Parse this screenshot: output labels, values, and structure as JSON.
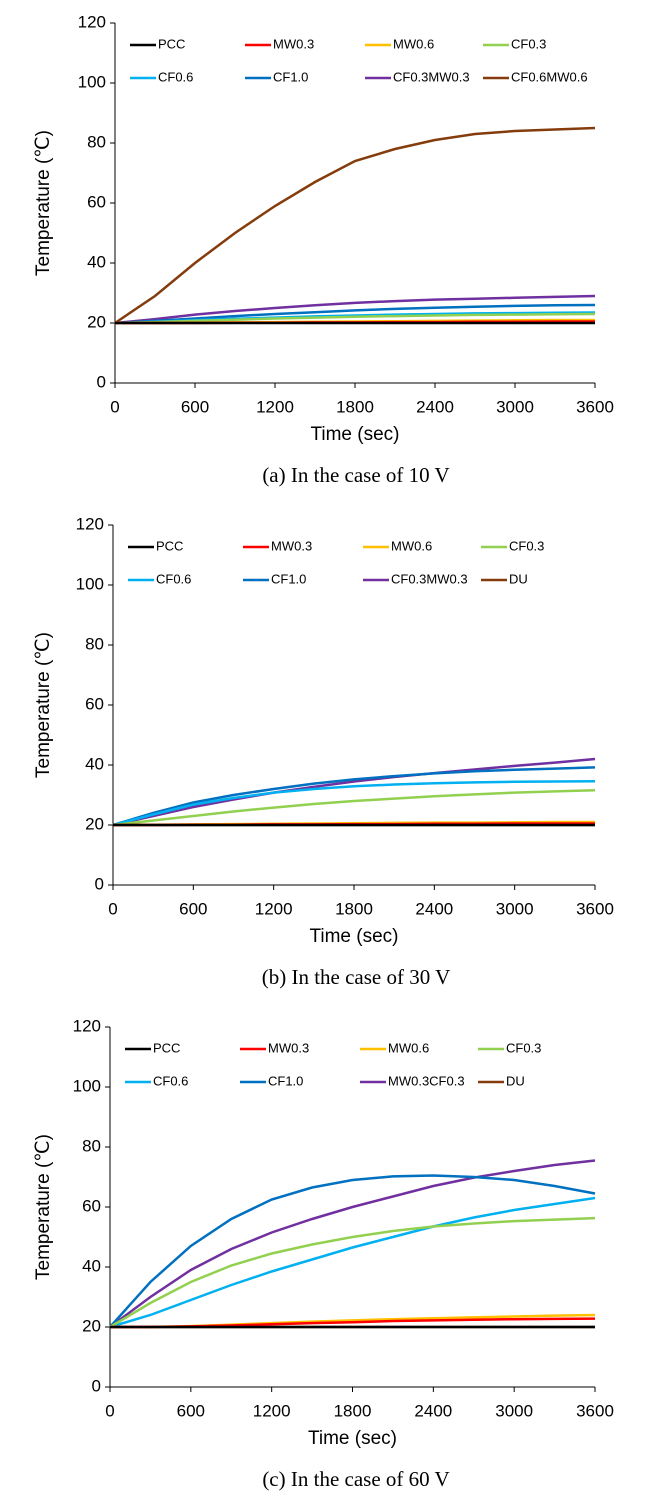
{
  "chart_data": [
    {
      "type": "line",
      "caption": "(a) In the case of 10 V",
      "xlabel": "Time (sec)",
      "ylabel": "Temperature (℃)",
      "x": [
        0,
        300,
        600,
        900,
        1200,
        1500,
        1800,
        2100,
        2400,
        2700,
        3000,
        3300,
        3600
      ],
      "xlim": [
        0,
        3600
      ],
      "xticks": [
        0,
        600,
        1200,
        1800,
        2400,
        3000,
        3600
      ],
      "ylim": [
        0,
        120
      ],
      "yticks": [
        0,
        20,
        40,
        60,
        80,
        100,
        120
      ],
      "series": [
        {
          "name": "PCC",
          "color": "#000000",
          "values": [
            20,
            20,
            20,
            20,
            20,
            20,
            20,
            20,
            20,
            20,
            20,
            20,
            20
          ]
        },
        {
          "name": "MW0.3",
          "color": "#ff0000",
          "values": [
            20,
            20,
            20,
            20.1,
            20.1,
            20.2,
            20.2,
            20.3,
            20.3,
            20.4,
            20.4,
            20.5,
            20.5
          ]
        },
        {
          "name": "MW0.6",
          "color": "#ffc000",
          "values": [
            20,
            20,
            20.1,
            20.2,
            20.3,
            20.4,
            20.5,
            20.6,
            20.7,
            20.8,
            20.9,
            21,
            21
          ]
        },
        {
          "name": "CF0.3",
          "color": "#92d050",
          "values": [
            20,
            20.3,
            20.7,
            21.1,
            21.5,
            21.8,
            22.1,
            22.3,
            22.5,
            22.7,
            22.8,
            22.9,
            23
          ]
        },
        {
          "name": "CF0.6",
          "color": "#00b0f0",
          "values": [
            20,
            20.4,
            20.9,
            21.4,
            21.8,
            22.2,
            22.5,
            22.8,
            23,
            23.2,
            23.3,
            23.4,
            23.5
          ]
        },
        {
          "name": "CF1.0",
          "color": "#0070c0",
          "values": [
            20,
            20.7,
            21.5,
            22.3,
            23,
            23.6,
            24.2,
            24.7,
            25.1,
            25.4,
            25.7,
            25.9,
            26
          ]
        },
        {
          "name": "CF0.3MW0.3",
          "color": "#7030a0",
          "values": [
            20,
            21.3,
            22.8,
            24,
            25,
            25.9,
            26.7,
            27.3,
            27.8,
            28.1,
            28.4,
            28.7,
            29
          ]
        },
        {
          "name": "CF0.6MW0.6",
          "color": "#843c0c",
          "values": [
            20,
            29,
            40,
            50,
            59,
            67,
            74,
            78,
            81,
            83,
            84,
            84.5,
            85
          ]
        }
      ]
    },
    {
      "type": "line",
      "caption": "(b) In the case of 30 V",
      "xlabel": "Time (sec)",
      "ylabel": "Temperature (℃)",
      "x": [
        0,
        300,
        600,
        900,
        1200,
        1500,
        1800,
        2100,
        2400,
        2700,
        3000,
        3300,
        3600
      ],
      "xlim": [
        0,
        3600
      ],
      "xticks": [
        0,
        600,
        1200,
        1800,
        2400,
        3000,
        3600
      ],
      "ylim": [
        0,
        120
      ],
      "yticks": [
        0,
        20,
        40,
        60,
        80,
        100,
        120
      ],
      "series": [
        {
          "name": "PCC",
          "color": "#000000",
          "values": [
            20,
            20,
            20,
            20,
            20,
            20,
            20,
            20,
            20,
            20,
            20,
            20,
            20
          ]
        },
        {
          "name": "MW0.3",
          "color": "#ff0000",
          "values": [
            20,
            20,
            20.1,
            20.1,
            20.2,
            20.2,
            20.3,
            20.3,
            20.4,
            20.4,
            20.5,
            20.5,
            20.5
          ]
        },
        {
          "name": "MW0.6",
          "color": "#ffc000",
          "values": [
            20,
            20.1,
            20.2,
            20.3,
            20.4,
            20.5,
            20.6,
            20.7,
            20.8,
            20.8,
            20.9,
            21,
            21
          ]
        },
        {
          "name": "CF0.3",
          "color": "#92d050",
          "values": [
            20,
            21.5,
            23,
            24.5,
            25.8,
            27,
            28,
            28.8,
            29.6,
            30.2,
            30.8,
            31.2,
            31.6
          ]
        },
        {
          "name": "CF0.6",
          "color": "#00b0f0",
          "values": [
            20,
            23.5,
            26.8,
            29,
            30.8,
            32,
            32.9,
            33.5,
            33.9,
            34.2,
            34.4,
            34.5,
            34.6
          ]
        },
        {
          "name": "CF1.0",
          "color": "#0070c0",
          "values": [
            20,
            24,
            27.5,
            30,
            32,
            33.8,
            35.2,
            36.3,
            37.2,
            37.9,
            38.4,
            38.8,
            39.2
          ]
        },
        {
          "name": "CF0.3MW0.3",
          "color": "#7030a0",
          "values": [
            20,
            23,
            26,
            28.5,
            30.8,
            32.7,
            34.5,
            36,
            37.3,
            38.5,
            39.7,
            40.8,
            42
          ]
        },
        {
          "name": "DU",
          "color": "#843c0c",
          "values": [
            20,
            20,
            20,
            20,
            20,
            20,
            20,
            20,
            20,
            20,
            20,
            20,
            20
          ]
        }
      ]
    },
    {
      "type": "line",
      "caption": "(c) In the case of 60 V",
      "xlabel": "Time (sec)",
      "ylabel": "Temperature (℃)",
      "x": [
        0,
        300,
        600,
        900,
        1200,
        1500,
        1800,
        2100,
        2400,
        2700,
        3000,
        3300,
        3600
      ],
      "xlim": [
        0,
        3600
      ],
      "xticks": [
        0,
        600,
        1200,
        1800,
        2400,
        3000,
        3600
      ],
      "ylim": [
        0,
        120
      ],
      "yticks": [
        0,
        20,
        40,
        60,
        80,
        100,
        120
      ],
      "series": [
        {
          "name": "PCC",
          "color": "#000000",
          "values": [
            20,
            20,
            20,
            20,
            20,
            20,
            20,
            20,
            20,
            20,
            20,
            20,
            20
          ]
        },
        {
          "name": "MW0.3",
          "color": "#ff0000",
          "values": [
            20,
            20,
            20.2,
            20.5,
            20.9,
            21.3,
            21.6,
            22,
            22.2,
            22.4,
            22.6,
            22.7,
            22.8
          ]
        },
        {
          "name": "MW0.6",
          "color": "#ffc000",
          "values": [
            20,
            20,
            20.3,
            20.8,
            21.3,
            21.8,
            22.2,
            22.6,
            22.9,
            23.2,
            23.5,
            23.8,
            24
          ]
        },
        {
          "name": "CF0.3",
          "color": "#92d050",
          "values": [
            20,
            28,
            35,
            40.5,
            44.5,
            47.5,
            50,
            52,
            53.5,
            54.5,
            55.3,
            55.8,
            56.3
          ]
        },
        {
          "name": "CF0.6",
          "color": "#00b0f0",
          "values": [
            20,
            24,
            29,
            34,
            38.5,
            42.5,
            46.5,
            50,
            53.5,
            56.5,
            59,
            61,
            63
          ]
        },
        {
          "name": "CF1.0",
          "color": "#0070c0",
          "values": [
            20,
            35,
            47,
            56,
            62.5,
            66.5,
            69,
            70.2,
            70.5,
            70,
            69,
            67,
            64.5
          ]
        },
        {
          "name": "MW0.3CF0.3",
          "color": "#7030a0",
          "values": [
            20,
            30,
            39,
            46,
            51.5,
            56,
            60,
            63.5,
            67,
            69.8,
            72,
            74,
            75.5
          ]
        },
        {
          "name": "DU",
          "color": "#843c0c",
          "values": [
            20,
            20,
            20,
            20,
            20,
            20,
            20,
            20,
            20,
            20,
            20,
            20,
            20
          ]
        }
      ]
    }
  ]
}
